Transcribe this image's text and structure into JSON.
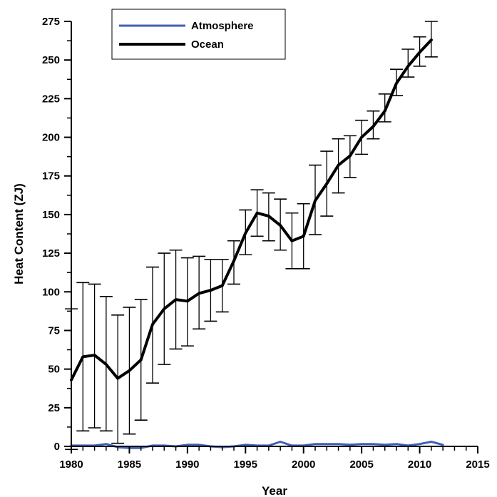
{
  "chart_data": {
    "type": "line",
    "xlabel": "Year",
    "ylabel": "Heat Content (ZJ)",
    "xlim": [
      1980,
      2015
    ],
    "ylim": [
      0,
      275
    ],
    "x_ticks": [
      "1980",
      "1985",
      "1990",
      "1995",
      "2000",
      "2005",
      "2010",
      "2015"
    ],
    "y_ticks": [
      "0",
      "25",
      "50",
      "75",
      "100",
      "125",
      "150",
      "175",
      "200",
      "225",
      "250",
      "275"
    ],
    "legend_position": "top-center",
    "grid": false,
    "series": [
      {
        "name": "Atmosphere",
        "color": "#4060b8",
        "x": [
          1980,
          1981,
          1982,
          1983,
          1984,
          1985,
          1986,
          1987,
          1988,
          1989,
          1990,
          1991,
          1992,
          1993,
          1994,
          1995,
          1996,
          1997,
          1998,
          1999,
          2000,
          2001,
          2002,
          2003,
          2004,
          2005,
          2006,
          2007,
          2008,
          2009,
          2010,
          2011,
          2012
        ],
        "y": [
          0.5,
          0.5,
          0.5,
          1.5,
          -0.5,
          -1,
          -1,
          0.5,
          0.5,
          0,
          1,
          1,
          0,
          -0.5,
          0,
          1,
          0.5,
          0.5,
          3,
          0.5,
          0.5,
          1.5,
          1.5,
          1.5,
          1,
          1.5,
          1.5,
          1,
          1.5,
          0.5,
          1.5,
          3,
          1
        ]
      },
      {
        "name": "Ocean",
        "color": "#000000",
        "x": [
          1980,
          1981,
          1982,
          1983,
          1984,
          1985,
          1986,
          1987,
          1988,
          1989,
          1990,
          1991,
          1992,
          1993,
          1994,
          1995,
          1996,
          1997,
          1998,
          1999,
          2000,
          2001,
          2002,
          2003,
          2004,
          2005,
          2006,
          2007,
          2008,
          2009,
          2010,
          2011
        ],
        "y": [
          43,
          58,
          59,
          53,
          44,
          49,
          56,
          79,
          89,
          95,
          94,
          99,
          101,
          104,
          120,
          138,
          151,
          149,
          143,
          133,
          136,
          159,
          170,
          182,
          188,
          200,
          207,
          217,
          235,
          246,
          255,
          263
        ],
        "err_low": [
          -2,
          10,
          12,
          10,
          2,
          8,
          17,
          41,
          53,
          63,
          65,
          76,
          81,
          87,
          105,
          124,
          136,
          133,
          127,
          115,
          115,
          137,
          149,
          164,
          174,
          189,
          199,
          210,
          227,
          239,
          246,
          252
        ],
        "err_high": [
          89,
          106,
          105,
          97,
          85,
          90,
          95,
          116,
          125,
          127,
          122,
          123,
          121,
          121,
          133,
          153,
          166,
          164,
          160,
          151,
          157,
          182,
          191,
          199,
          201,
          211,
          217,
          228,
          244,
          257,
          265,
          275
        ]
      }
    ]
  }
}
